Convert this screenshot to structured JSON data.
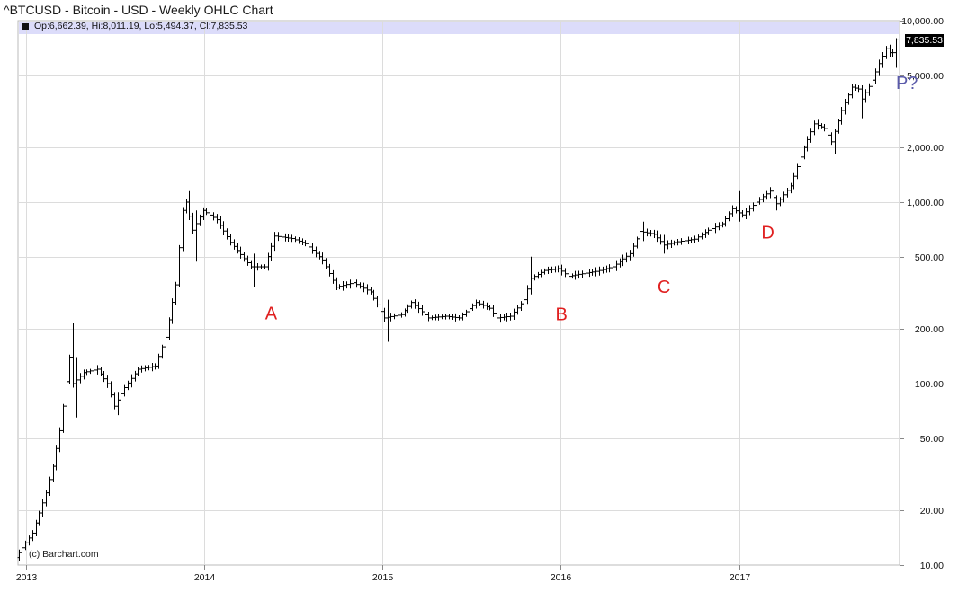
{
  "title": "^BTCUSD - Bitcoin - USD - Weekly OHLC Chart",
  "ohlc_label": "Op:6,662.39, Hi:8,011.19, Lo:5,494.37, Cl:7,835.53",
  "copyright": "(c) Barchart.com",
  "last_price_tag": "7,835.53",
  "colors": {
    "bars": "#000000",
    "grid": "#dcdcdc",
    "header_band": "#dcdcfa",
    "annotation": "#e02020",
    "annotation_p": "#5a5aaa"
  },
  "chart_data": {
    "type": "ohlc",
    "y_scale": "log",
    "ylim": [
      10,
      10000
    ],
    "xlim": [
      "2012-12-15",
      "2017-11-26"
    ],
    "yticks": [
      {
        "value": 10000,
        "label": "10,000.00"
      },
      {
        "value": 5000,
        "label": "5,000.00"
      },
      {
        "value": 2000,
        "label": "2,000.00"
      },
      {
        "value": 1000,
        "label": "1,000.00"
      },
      {
        "value": 500,
        "label": "500.00"
      },
      {
        "value": 200,
        "label": "200.00"
      },
      {
        "value": 100,
        "label": "100.00"
      },
      {
        "value": 50,
        "label": "50.00"
      },
      {
        "value": 20,
        "label": "20.00"
      },
      {
        "value": 10,
        "label": "10.00"
      }
    ],
    "xticks": [
      {
        "date": "2013-01-01",
        "label": "2013"
      },
      {
        "date": "2014-01-01",
        "label": "2014"
      },
      {
        "date": "2015-01-01",
        "label": "2015"
      },
      {
        "date": "2016-01-01",
        "label": "2016"
      },
      {
        "date": "2017-01-01",
        "label": "2017"
      }
    ],
    "anchors": [
      [
        "2012-12-16",
        11
      ],
      [
        "2013-01-20",
        15
      ],
      [
        "2013-02-17",
        25
      ],
      [
        "2013-03-03",
        35
      ],
      [
        "2013-03-17",
        55
      ],
      [
        "2013-04-07",
        140
      ],
      [
        "2013-04-14",
        100
      ],
      [
        "2013-05-05",
        115
      ],
      [
        "2013-06-02",
        120
      ],
      [
        "2013-06-23",
        100
      ],
      [
        "2013-07-07",
        75
      ],
      [
        "2013-07-28",
        95
      ],
      [
        "2013-08-25",
        120
      ],
      [
        "2013-09-29",
        125
      ],
      [
        "2013-10-20",
        180
      ],
      [
        "2013-11-10",
        350
      ],
      [
        "2013-11-24",
        900
      ],
      [
        "2013-12-01",
        1000
      ],
      [
        "2013-12-15",
        700
      ],
      [
        "2014-01-05",
        900
      ],
      [
        "2014-02-02",
        800
      ],
      [
        "2014-03-02",
        600
      ],
      [
        "2014-04-13",
        440
      ],
      [
        "2014-05-11",
        440
      ],
      [
        "2014-06-01",
        650
      ],
      [
        "2014-07-06",
        630
      ],
      [
        "2014-08-03",
        590
      ],
      [
        "2014-09-07",
        480
      ],
      [
        "2014-10-05",
        340
      ],
      [
        "2014-11-09",
        360
      ],
      [
        "2014-12-14",
        320
      ],
      [
        "2015-01-11",
        230
      ],
      [
        "2015-02-15",
        240
      ],
      [
        "2015-03-08",
        280
      ],
      [
        "2015-04-12",
        230
      ],
      [
        "2015-05-17",
        235
      ],
      [
        "2015-06-14",
        230
      ],
      [
        "2015-07-19",
        280
      ],
      [
        "2015-08-16",
        260
      ],
      [
        "2015-08-30",
        230
      ],
      [
        "2015-09-27",
        235
      ],
      [
        "2015-10-25",
        290
      ],
      [
        "2015-11-08",
        380
      ],
      [
        "2015-12-06",
        420
      ],
      [
        "2016-01-03",
        430
      ],
      [
        "2016-01-24",
        390
      ],
      [
        "2016-02-14",
        400
      ],
      [
        "2016-03-20",
        415
      ],
      [
        "2016-04-24",
        440
      ],
      [
        "2016-05-29",
        520
      ],
      [
        "2016-06-19",
        690
      ],
      [
        "2016-07-17",
        665
      ],
      [
        "2016-08-07",
        580
      ],
      [
        "2016-09-04",
        605
      ],
      [
        "2016-10-09",
        625
      ],
      [
        "2016-11-06",
        700
      ],
      [
        "2016-12-04",
        760
      ],
      [
        "2016-12-25",
        920
      ],
      [
        "2017-01-15",
        850
      ],
      [
        "2017-02-12",
        1000
      ],
      [
        "2017-03-12",
        1150
      ],
      [
        "2017-03-26",
        980
      ],
      [
        "2017-04-23",
        1230
      ],
      [
        "2017-05-21",
        2000
      ],
      [
        "2017-06-11",
        2700
      ],
      [
        "2017-07-02",
        2550
      ],
      [
        "2017-07-16",
        2150
      ],
      [
        "2017-08-06",
        3200
      ],
      [
        "2017-08-27",
        4300
      ],
      [
        "2017-09-10",
        4200
      ],
      [
        "2017-09-17",
        3700
      ],
      [
        "2017-10-08",
        4700
      ],
      [
        "2017-10-22",
        5800
      ],
      [
        "2017-11-05",
        7000
      ],
      [
        "2017-11-12",
        6662.39
      ]
    ],
    "spikes": [
      {
        "date": "2013-04-07",
        "high": 215,
        "low": 95
      },
      {
        "date": "2013-04-14",
        "high": 140,
        "low": 65
      },
      {
        "date": "2013-07-07",
        "high": 90,
        "low": 67
      },
      {
        "date": "2013-12-01",
        "high": 1150,
        "low": 850
      },
      {
        "date": "2013-12-15",
        "high": 900,
        "low": 470
      },
      {
        "date": "2014-04-13",
        "high": 520,
        "low": 340
      },
      {
        "date": "2015-01-11",
        "high": 290,
        "low": 170
      },
      {
        "date": "2015-11-01",
        "high": 500,
        "low": 310
      },
      {
        "date": "2016-06-19",
        "high": 780,
        "low": 610
      },
      {
        "date": "2016-07-31",
        "high": 660,
        "low": 520
      },
      {
        "date": "2017-01-01",
        "high": 1150,
        "low": 780
      },
      {
        "date": "2017-03-19",
        "high": 1000,
        "low": 900
      },
      {
        "date": "2017-07-16",
        "high": 2400,
        "low": 1850
      },
      {
        "date": "2017-09-10",
        "high": 4400,
        "low": 2900
      }
    ],
    "last_bar": {
      "date": "2017-11-19",
      "open": 6662.39,
      "high": 8011.19,
      "low": 5494.37,
      "close": 7835.53
    },
    "annotations": [
      {
        "label": "A",
        "date": "2014-05-18",
        "value": 248
      },
      {
        "label": "B",
        "date": "2016-01-03",
        "value": 245
      },
      {
        "label": "C",
        "date": "2016-07-31",
        "value": 347
      },
      {
        "label": "D",
        "date": "2017-03-01",
        "value": 690
      },
      {
        "label": "P?",
        "date": "2017-11-19",
        "value": 4600
      }
    ]
  }
}
